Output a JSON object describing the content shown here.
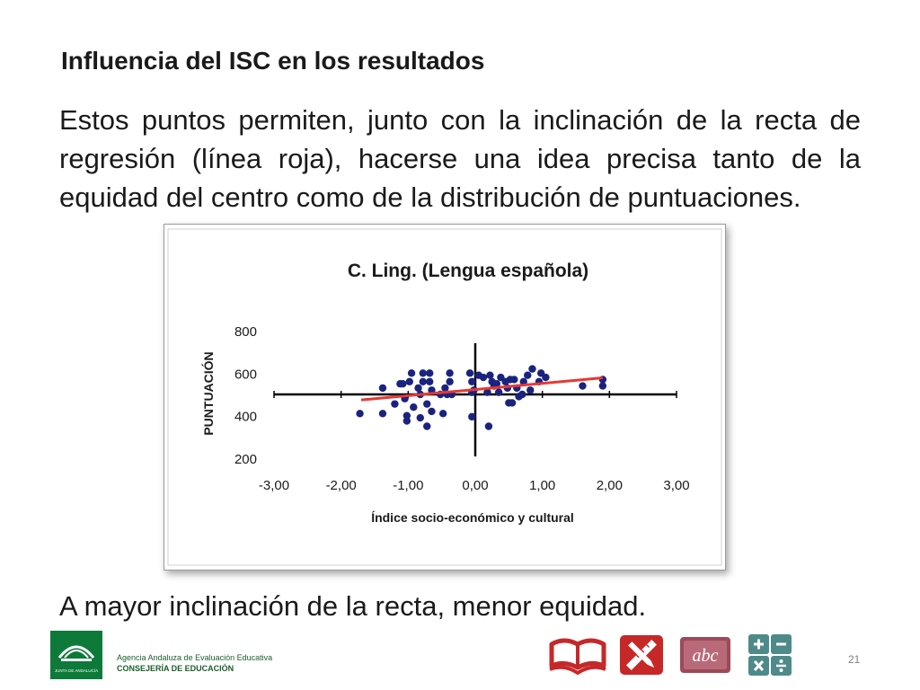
{
  "slide": {
    "title": "Influencia del ISC en los resultados",
    "body": "Estos puntos permiten, junto con la inclinación de la recta de regresión (línea roja), hacerse una idea precisa tanto de la equidad del centro como de la distribución de puntuaciones.",
    "conclusion": "A mayor inclinación de la recta, menor equidad.",
    "page_number": "21"
  },
  "footer": {
    "agency_line1": "Agencia Andaluza de Evaluación Educativa",
    "agency_line2": "CONSEJERÍA DE EDUCACIÓN",
    "logo_text": "JUNTA DE ANDALUCÍA"
  },
  "icons": [
    "open-book-icon",
    "ruler-pencil-icon",
    "abc-slate-icon",
    "calculator-icon"
  ],
  "colors": {
    "points": "#1a237e",
    "regression": "#e53935",
    "logo_green": "#0d7a3a",
    "icon_red": "#c62828",
    "icon_teal": "#4e8a89"
  },
  "chart_data": {
    "type": "scatter",
    "title": "C. Ling. (Lengua española)",
    "xlabel": "Índice socio-económico y cultural",
    "ylabel": "PUNTUACIÓN",
    "xlim": [
      -3,
      3
    ],
    "ylim": [
      200,
      800
    ],
    "x_ticks": [
      -3,
      -2,
      -1,
      0,
      1,
      2,
      3
    ],
    "x_tick_labels": [
      "-3,00",
      "-2,00",
      "-1,00",
      "0,00",
      "1,00",
      "2,00",
      "3,00"
    ],
    "y_ticks": [
      200,
      400,
      600,
      800
    ],
    "y_tick_labels": [
      "200",
      "400",
      "600",
      "800"
    ],
    "axis_cross": {
      "x": 0,
      "y": 500
    },
    "grid": false,
    "legend": "none",
    "points": [
      [
        -1.72,
        410
      ],
      [
        -1.38,
        410
      ],
      [
        -1.38,
        530
      ],
      [
        -1.2,
        455
      ],
      [
        -1.12,
        550
      ],
      [
        -1.08,
        550
      ],
      [
        -1.05,
        480
      ],
      [
        -1.02,
        375
      ],
      [
        -1.02,
        400
      ],
      [
        -0.98,
        560
      ],
      [
        -0.95,
        600
      ],
      [
        -0.92,
        440
      ],
      [
        -0.85,
        530
      ],
      [
        -0.82,
        500
      ],
      [
        -0.82,
        390
      ],
      [
        -0.78,
        600
      ],
      [
        -0.78,
        560
      ],
      [
        -0.72,
        455
      ],
      [
        -0.72,
        350
      ],
      [
        -0.68,
        600
      ],
      [
        -0.68,
        560
      ],
      [
        -0.65,
        520
      ],
      [
        -0.65,
        420
      ],
      [
        -0.52,
        500
      ],
      [
        -0.48,
        410
      ],
      [
        -0.45,
        530
      ],
      [
        -0.42,
        500
      ],
      [
        -0.38,
        600
      ],
      [
        -0.38,
        560
      ],
      [
        -0.35,
        500
      ],
      [
        -0.08,
        600
      ],
      [
        -0.05,
        560
      ],
      [
        -0.05,
        510
      ],
      [
        -0.05,
        395
      ],
      [
        -0.02,
        520
      ],
      [
        0.05,
        590
      ],
      [
        0.12,
        580
      ],
      [
        0.18,
        510
      ],
      [
        0.2,
        350
      ],
      [
        0.22,
        590
      ],
      [
        0.25,
        560
      ],
      [
        0.28,
        540
      ],
      [
        0.32,
        550
      ],
      [
        0.35,
        510
      ],
      [
        0.38,
        580
      ],
      [
        0.45,
        560
      ],
      [
        0.48,
        530
      ],
      [
        0.5,
        460
      ],
      [
        0.52,
        570
      ],
      [
        0.55,
        460
      ],
      [
        0.58,
        570
      ],
      [
        0.62,
        530
      ],
      [
        0.65,
        490
      ],
      [
        0.7,
        500
      ],
      [
        0.72,
        560
      ],
      [
        0.78,
        590
      ],
      [
        0.82,
        520
      ],
      [
        0.85,
        620
      ],
      [
        0.95,
        560
      ],
      [
        0.98,
        600
      ],
      [
        1.05,
        580
      ],
      [
        1.6,
        540
      ],
      [
        1.9,
        570
      ],
      [
        1.9,
        540
      ]
    ],
    "regression_line": {
      "from": [
        -1.7,
        474
      ],
      "to": [
        1.9,
        578
      ]
    }
  }
}
